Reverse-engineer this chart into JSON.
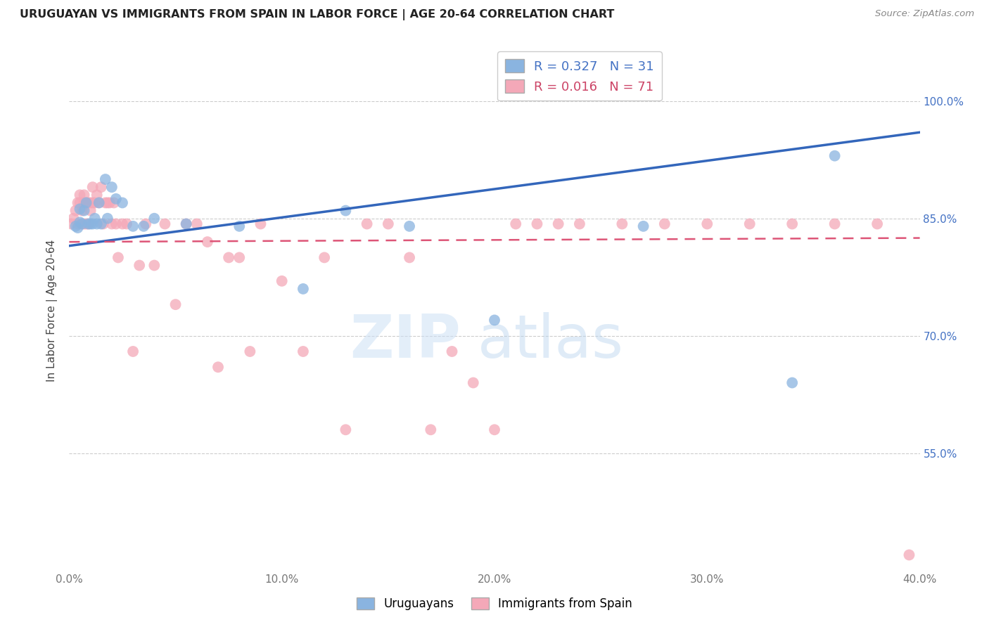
{
  "title": "URUGUAYAN VS IMMIGRANTS FROM SPAIN IN LABOR FORCE | AGE 20-64 CORRELATION CHART",
  "source": "Source: ZipAtlas.com",
  "ylabel": "In Labor Force | Age 20-64",
  "xlim": [
    0.0,
    0.4
  ],
  "ylim": [
    0.4,
    1.065
  ],
  "yticks": [
    0.55,
    0.7,
    0.85,
    1.0
  ],
  "ytick_labels": [
    "55.0%",
    "70.0%",
    "85.0%",
    "100.0%"
  ],
  "xticks": [
    0.0,
    0.1,
    0.2,
    0.3,
    0.4
  ],
  "xtick_labels": [
    "0.0%",
    "10.0%",
    "20.0%",
    "30.0%",
    "40.0%"
  ],
  "blue_color": "#8ab4e0",
  "pink_color": "#f4a8b8",
  "blue_line_color": "#3366bb",
  "pink_line_color": "#dd5577",
  "legend_R_blue": "R = 0.327",
  "legend_N_blue": "N = 31",
  "legend_R_pink": "R = 0.016",
  "legend_N_pink": "N = 71",
  "watermark_zip": "ZIP",
  "watermark_atlas": "atlas",
  "blue_x": [
    0.003,
    0.004,
    0.005,
    0.005,
    0.006,
    0.007,
    0.008,
    0.009,
    0.01,
    0.011,
    0.012,
    0.013,
    0.014,
    0.015,
    0.017,
    0.018,
    0.02,
    0.022,
    0.025,
    0.03,
    0.035,
    0.04,
    0.055,
    0.08,
    0.11,
    0.13,
    0.16,
    0.2,
    0.27,
    0.34,
    0.36
  ],
  "blue_y": [
    0.84,
    0.838,
    0.845,
    0.862,
    0.843,
    0.86,
    0.87,
    0.843,
    0.843,
    0.843,
    0.85,
    0.843,
    0.87,
    0.843,
    0.9,
    0.85,
    0.89,
    0.875,
    0.87,
    0.84,
    0.84,
    0.85,
    0.843,
    0.84,
    0.76,
    0.86,
    0.84,
    0.72,
    0.84,
    0.64,
    0.93
  ],
  "pink_x": [
    0.001,
    0.002,
    0.003,
    0.004,
    0.004,
    0.005,
    0.005,
    0.006,
    0.006,
    0.007,
    0.007,
    0.007,
    0.008,
    0.008,
    0.009,
    0.009,
    0.01,
    0.01,
    0.011,
    0.011,
    0.012,
    0.013,
    0.014,
    0.015,
    0.016,
    0.017,
    0.018,
    0.019,
    0.02,
    0.021,
    0.022,
    0.023,
    0.025,
    0.027,
    0.03,
    0.033,
    0.036,
    0.04,
    0.045,
    0.05,
    0.055,
    0.06,
    0.065,
    0.07,
    0.075,
    0.08,
    0.085,
    0.09,
    0.1,
    0.11,
    0.12,
    0.13,
    0.14,
    0.15,
    0.16,
    0.17,
    0.18,
    0.19,
    0.2,
    0.21,
    0.22,
    0.23,
    0.24,
    0.26,
    0.28,
    0.3,
    0.32,
    0.34,
    0.36,
    0.38,
    0.395
  ],
  "pink_y": [
    0.843,
    0.85,
    0.86,
    0.87,
    0.843,
    0.88,
    0.87,
    0.86,
    0.843,
    0.87,
    0.88,
    0.843,
    0.87,
    0.843,
    0.87,
    0.843,
    0.87,
    0.86,
    0.87,
    0.89,
    0.87,
    0.88,
    0.87,
    0.89,
    0.843,
    0.87,
    0.87,
    0.87,
    0.843,
    0.87,
    0.843,
    0.8,
    0.843,
    0.843,
    0.68,
    0.79,
    0.843,
    0.79,
    0.843,
    0.74,
    0.843,
    0.843,
    0.82,
    0.66,
    0.8,
    0.8,
    0.68,
    0.843,
    0.77,
    0.68,
    0.8,
    0.58,
    0.843,
    0.843,
    0.8,
    0.58,
    0.68,
    0.64,
    0.58,
    0.843,
    0.843,
    0.843,
    0.843,
    0.843,
    0.843,
    0.843,
    0.843,
    0.843,
    0.843,
    0.843,
    0.42
  ],
  "blue_trend_x": [
    0.0,
    0.4
  ],
  "blue_trend_y": [
    0.815,
    0.96
  ],
  "pink_trend_x": [
    0.0,
    0.4
  ],
  "pink_trend_y": [
    0.82,
    0.825
  ]
}
